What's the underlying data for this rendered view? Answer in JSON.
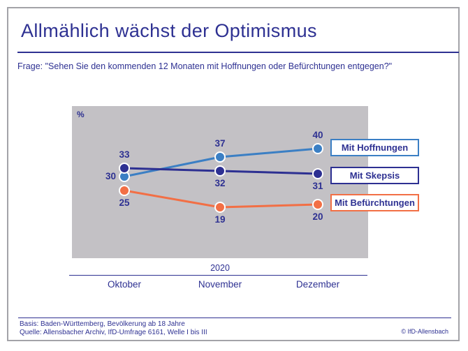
{
  "header": {
    "title": "Allmählich wächst der Optimismus",
    "question": "Frage: \"Sehen Sie den kommenden 12 Monaten mit Hoffnungen oder Befürchtungen entgegen?\""
  },
  "chart_data": {
    "type": "line",
    "unit_label": "%",
    "year_label": "2020",
    "categories": [
      "Oktober",
      "November",
      "Dezember"
    ],
    "series": [
      {
        "name": "Mit Hoffnungen",
        "values": [
          30,
          37,
          40
        ],
        "color": "#3b7fc4",
        "label_pos": [
          "left",
          "above",
          "above"
        ]
      },
      {
        "name": "Mit Skepsis",
        "values": [
          33,
          32,
          31
        ],
        "color": "#2d3092",
        "label_pos": [
          "above",
          "below",
          "below"
        ]
      },
      {
        "name": "Mit Befürchtungen",
        "values": [
          25,
          19,
          20
        ],
        "color": "#f26f45",
        "label_pos": [
          "below",
          "below",
          "below"
        ]
      }
    ],
    "legend_position": "right",
    "grid": false,
    "plot_background": "#c3c1c5"
  },
  "footer": {
    "basis": "Basis: Baden-Württemberg, Bevölkerung ab 18 Jahre",
    "quelle": "Quelle: Allensbacher Archiv, IfD-Umfrage 6161, Welle I bis III",
    "copyright": "© IfD-Allensbach"
  },
  "colors": {
    "text": "#2e3192",
    "panel": "#c3c1c5",
    "hoffnungen": "#3b7fc4",
    "skepsis": "#2d3092",
    "befuerchtungen": "#f26f45"
  }
}
